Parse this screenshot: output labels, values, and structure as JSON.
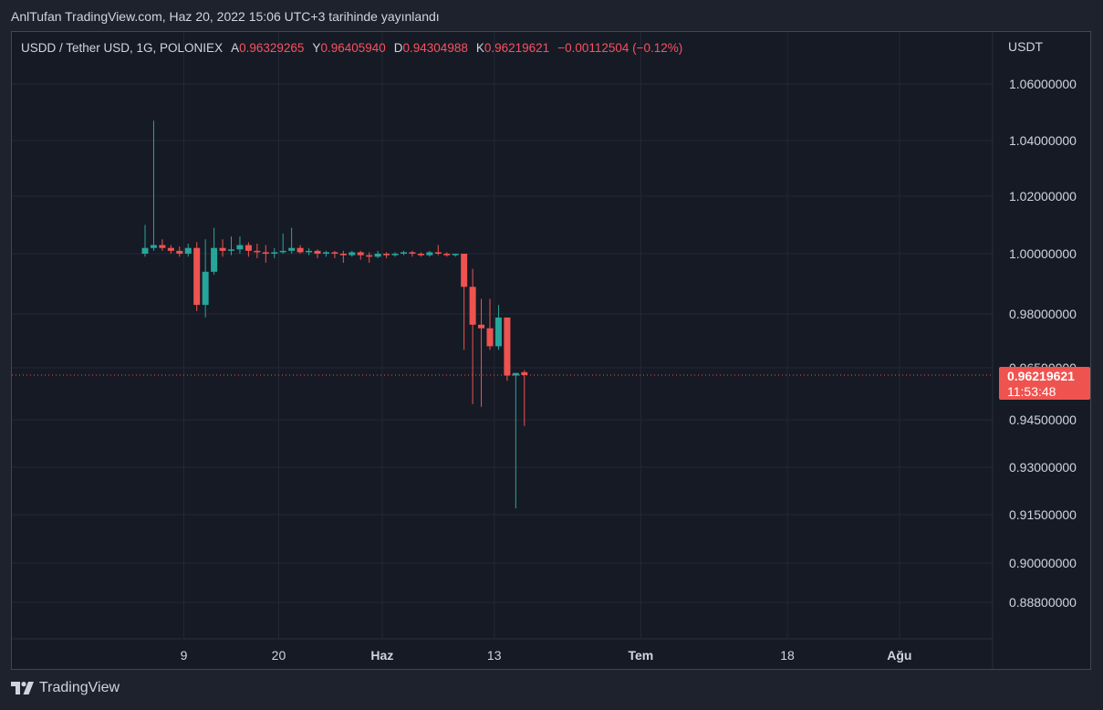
{
  "header": {
    "published": "AnlTufan TradingView.com, Haz 20, 2022 15:06 UTC+3 tarihinde yayınlandı"
  },
  "legend": {
    "symbol": "USDD / Tether USD, 1G, POLONIEX",
    "open_label": "A",
    "open": "0.96329265",
    "high_label": "Y",
    "high": "0.96405940",
    "low_label": "D",
    "low": "0.94304988",
    "close_label": "K",
    "close": "0.96219621",
    "change": "−0.00112504 (−0.12%)"
  },
  "footer": {
    "brand": "TradingView"
  },
  "colors": {
    "up": "#26a69a",
    "down": "#ef5350",
    "grid": "#242836",
    "background": "#161a25",
    "text": "#d1d4dc"
  },
  "chart_data": {
    "type": "candlestick",
    "title": "USDD / Tether USD, 1G, POLONIEX",
    "currency_label": "USDT",
    "y_ticks": [
      "1.06000000",
      "1.04000000",
      "1.02000000",
      "1.00000000",
      "0.98000000",
      "0.96500000",
      "0.94500000",
      "0.93000000",
      "0.91500000",
      "0.90000000",
      "0.88800000"
    ],
    "y_tick_values": [
      1.06,
      1.04,
      1.02,
      1.0,
      0.98,
      0.965,
      0.945,
      0.93,
      0.915,
      0.9,
      0.888
    ],
    "x_ticks": [
      {
        "label": "9",
        "bold": false,
        "after_candle": 4.5
      },
      {
        "label": "20",
        "bold": false,
        "after_candle": 15.5
      },
      {
        "label": "Haz",
        "bold": true,
        "after_candle": 27.5
      },
      {
        "label": "13",
        "bold": false,
        "after_candle": 40.5
      },
      {
        "label": "Tem",
        "bold": true,
        "after_candle": 57.5
      },
      {
        "label": "18",
        "bold": false,
        "after_candle": 74.5
      },
      {
        "label": "Ağu",
        "bold": true,
        "after_candle": 87.5
      }
    ],
    "last_price": "0.96219621",
    "last_value": 0.96219621,
    "countdown": "11:53:48",
    "candles": [
      [
        1.0,
        1.01,
        0.999,
        1.002
      ],
      [
        1.002,
        1.047,
        1.001,
        1.003
      ],
      [
        1.003,
        1.005,
        1.001,
        1.002
      ],
      [
        1.002,
        1.003,
        1.0,
        1.001
      ],
      [
        1.001,
        1.0025,
        0.999,
        1.0
      ],
      [
        1.0,
        1.0035,
        0.999,
        1.002
      ],
      [
        1.002,
        1.004,
        0.981,
        0.983
      ],
      [
        0.983,
        1.005,
        0.979,
        0.994
      ],
      [
        0.994,
        1.009,
        0.993,
        1.002
      ],
      [
        1.002,
        1.005,
        0.999,
        1.001
      ],
      [
        1.001,
        1.006,
        0.9995,
        1.0015
      ],
      [
        1.0015,
        1.006,
        1.0,
        1.003
      ],
      [
        1.003,
        1.004,
        0.999,
        1.001
      ],
      [
        1.001,
        1.0035,
        0.9985,
        1.0005
      ],
      [
        1.0005,
        1.003,
        0.997,
        1.0
      ],
      [
        1.0,
        1.002,
        0.9985,
        1.0005
      ],
      [
        1.0005,
        1.007,
        1.0,
        1.001
      ],
      [
        1.001,
        1.009,
        1.0,
        1.002
      ],
      [
        1.002,
        1.003,
        1.0,
        1.0005
      ],
      [
        1.0005,
        1.002,
        0.9995,
        1.001
      ],
      [
        1.001,
        1.0015,
        0.9985,
        1.0
      ],
      [
        1.0,
        1.001,
        0.999,
        1.0005
      ],
      [
        1.0005,
        1.001,
        0.9985,
        1.0
      ],
      [
        1.0,
        1.001,
        0.997,
        0.9995
      ],
      [
        0.9995,
        1.001,
        0.999,
        1.0005
      ],
      [
        1.0005,
        1.001,
        0.998,
        0.9995
      ],
      [
        0.9995,
        1.0005,
        0.997,
        0.999
      ],
      [
        0.999,
        1.001,
        0.9985,
        1.0
      ],
      [
        1.0,
        1.0005,
        0.9985,
        0.9995
      ],
      [
        0.9995,
        1.0005,
        0.999,
        1.0
      ],
      [
        1.0,
        1.001,
        0.9995,
        1.0005
      ],
      [
        1.0005,
        1.001,
        0.999,
        1.0
      ],
      [
        1.0,
        1.0005,
        0.999,
        0.9995
      ],
      [
        0.9995,
        1.001,
        0.999,
        1.0005
      ],
      [
        1.0005,
        1.003,
        0.9995,
        1.0
      ],
      [
        1.0,
        1.0005,
        0.999,
        0.9995
      ],
      [
        0.9995,
        1.0,
        0.999,
        1.0
      ],
      [
        1.0,
        1.0,
        0.97,
        0.989
      ],
      [
        0.989,
        0.995,
        0.951,
        0.977
      ],
      [
        0.977,
        0.985,
        0.95,
        0.976
      ],
      [
        0.976,
        0.985,
        0.97,
        0.971
      ],
      [
        0.971,
        0.983,
        0.97,
        0.979
      ],
      [
        0.979,
        0.979,
        0.96,
        0.962
      ],
      [
        0.962,
        0.963,
        0.917,
        0.963
      ],
      [
        0.96329265,
        0.9640594,
        0.94304988,
        0.96219621
      ]
    ]
  }
}
